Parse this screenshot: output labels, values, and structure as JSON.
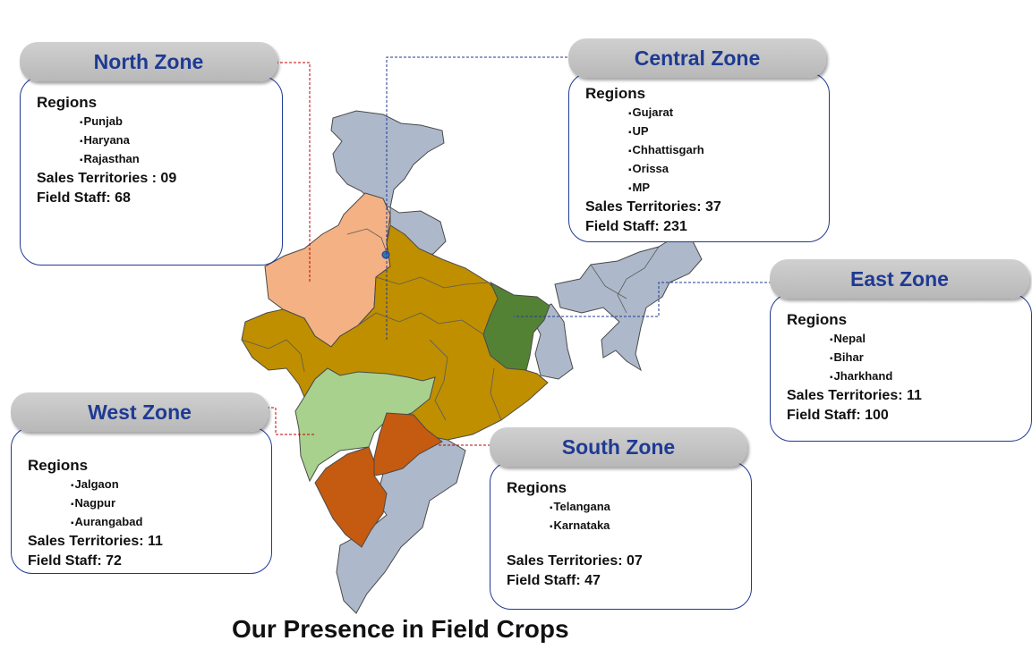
{
  "title": "Our Presence in Field Crops",
  "colors": {
    "zone_title": "#1f3a93",
    "north": "#f4b183",
    "central": "#bf8f00",
    "east": "#548235",
    "west": "#a9d18e",
    "south": "#c55a11",
    "other": "#adb9ca",
    "connector_red": "#c00000",
    "connector_blue": "#1f3a93"
  },
  "zones": {
    "north": {
      "name": "North Zone",
      "regions_label": "Regions",
      "regions": [
        "Punjab",
        "Haryana",
        "Rajasthan"
      ],
      "sales_territories": "Sales Territories : 09",
      "field_staff": "Field Staff: 68"
    },
    "central": {
      "name": "Central Zone",
      "regions_label": "Regions",
      "regions": [
        "Gujarat",
        "UP",
        "Chhattisgarh",
        "Orissa",
        "MP"
      ],
      "sales_territories": "Sales Territories: 37",
      "field_staff": "Field Staff: 231"
    },
    "east": {
      "name": "East Zone",
      "regions_label": "Regions",
      "regions": [
        "Nepal",
        "Bihar",
        "Jharkhand"
      ],
      "sales_territories": "Sales Territories: 11",
      "field_staff": "Field Staff: 100"
    },
    "west": {
      "name": "West Zone",
      "regions_label": "Regions",
      "regions": [
        "Jalgaon",
        "Nagpur",
        "Aurangabad"
      ],
      "sales_territories": "Sales Territories: 11",
      "field_staff": "Field Staff: 72"
    },
    "south": {
      "name": "South Zone",
      "regions_label": "Regions",
      "regions": [
        "Telangana",
        "Karnataka"
      ],
      "sales_territories": "Sales Territories: 07",
      "field_staff": "Field Staff: 47"
    }
  }
}
